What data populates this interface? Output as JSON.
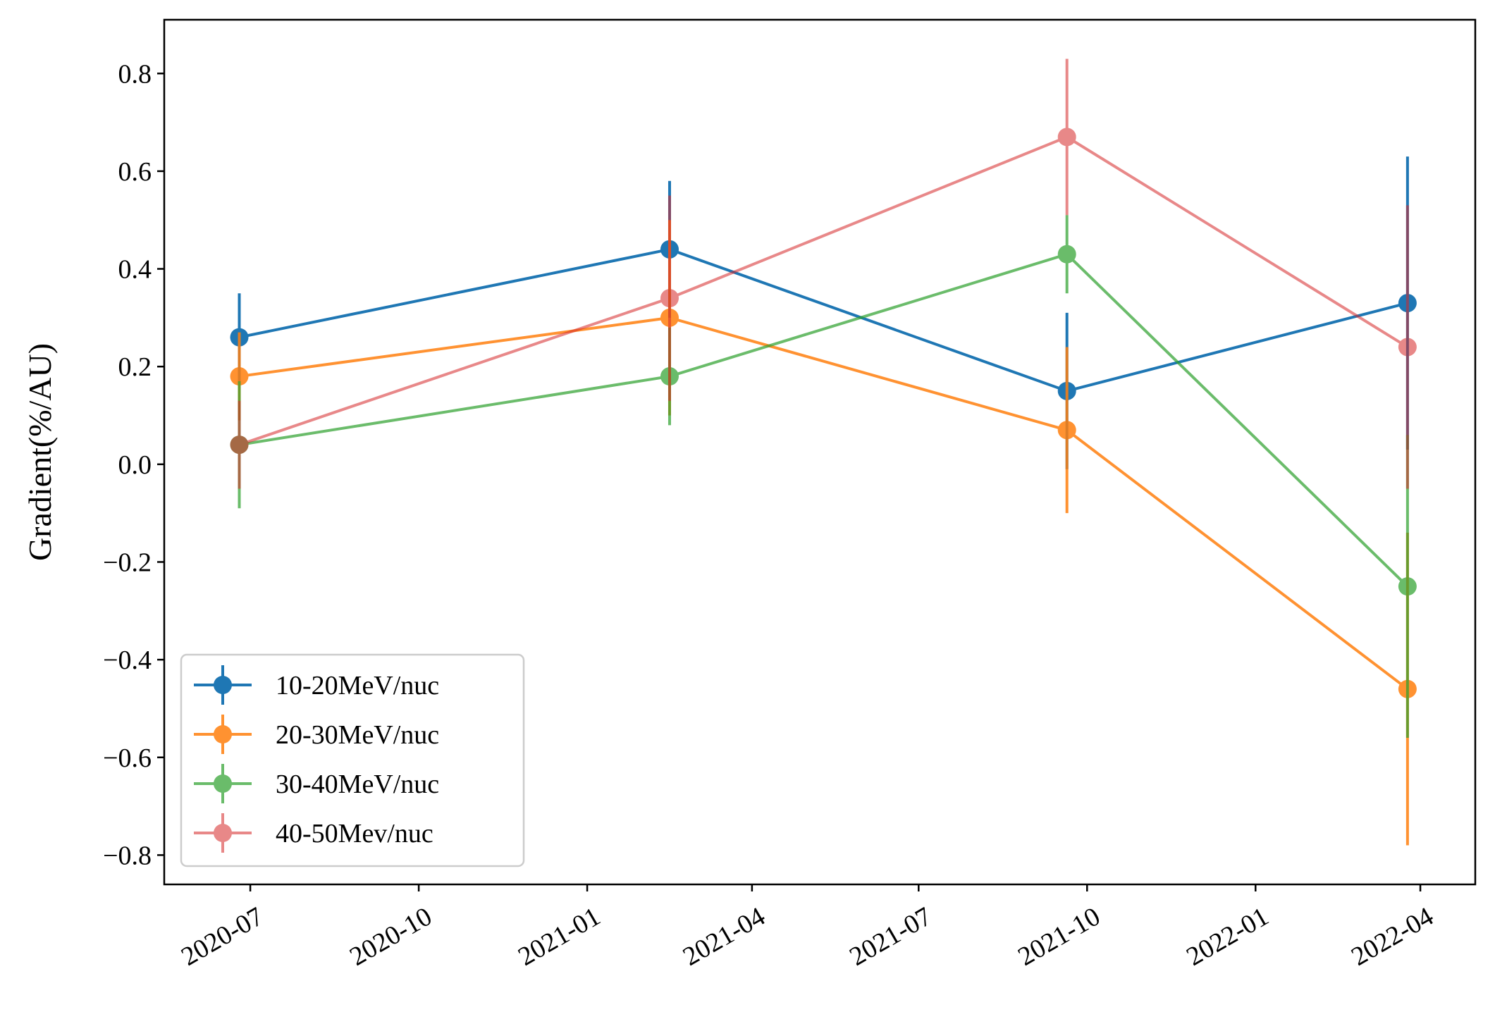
{
  "chart_data": {
    "type": "line",
    "ylabel": "Gradient(%/AU)",
    "xlabel": "",
    "xlim": [
      "2020-05-15",
      "2022-05-01"
    ],
    "ylim": [
      -0.86,
      0.91
    ],
    "xticks": [
      "2020-07-01",
      "2020-10-01",
      "2021-01-01",
      "2021-04-01",
      "2021-07-01",
      "2021-10-01",
      "2022-01-01",
      "2022-04-01"
    ],
    "xtick_labels": [
      "2020-07",
      "2020-10",
      "2021-01",
      "2021-04",
      "2021-07",
      "2021-10",
      "2022-01",
      "2022-04"
    ],
    "yticks": [
      -0.8,
      -0.6,
      -0.4,
      -0.2,
      0.0,
      0.2,
      0.4,
      0.6,
      0.8
    ],
    "ytick_labels": [
      "−0.8",
      "−0.6",
      "−0.4",
      "−0.2",
      "0.0",
      "0.2",
      "0.4",
      "0.6",
      "0.8"
    ],
    "x": [
      "2020-06-25",
      "2021-02-15",
      "2021-09-20",
      "2022-03-25"
    ],
    "legend_position": "lower left",
    "grid": false,
    "series": [
      {
        "name": "10-20MeV/nuc",
        "color": "#1f77b4",
        "alpha": 1.0,
        "values": [
          0.26,
          0.44,
          0.15,
          0.33
        ],
        "errors": [
          0.09,
          0.14,
          0.16,
          0.3
        ]
      },
      {
        "name": "20-30MeV/nuc",
        "color": "#ff7f0e",
        "alpha": 0.85,
        "values": [
          0.18,
          0.3,
          0.07,
          -0.46
        ],
        "errors": [
          0.09,
          0.2,
          0.17,
          0.32
        ]
      },
      {
        "name": "30-40MeV/nuc",
        "color": "#2ca02c",
        "alpha": 0.7,
        "values": [
          0.04,
          0.18,
          0.43,
          -0.25
        ],
        "errors": [
          0.13,
          0.1,
          0.08,
          0.31
        ]
      },
      {
        "name": "40-50Mev/nuc",
        "color": "#d62728",
        "alpha": 0.55,
        "values": [
          0.04,
          0.34,
          0.67,
          0.24
        ],
        "errors": [
          0.09,
          0.21,
          0.16,
          0.29
        ]
      }
    ]
  }
}
